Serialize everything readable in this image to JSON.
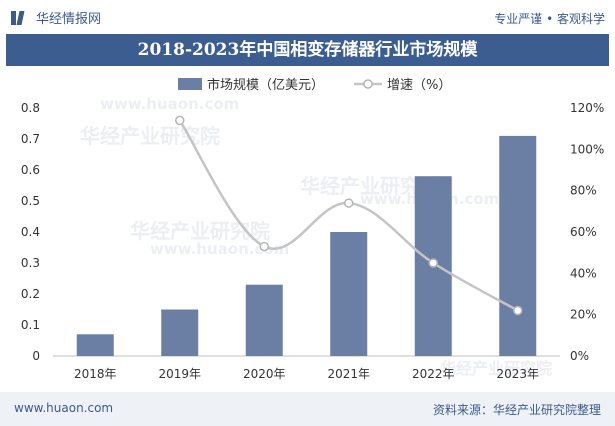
{
  "header": {
    "brand_name": "华经情报网",
    "tagline": "专业严谨 • 客观科学"
  },
  "watermark": {
    "text_cn": "华经产业研究院",
    "text_url": "www.huaon.com"
  },
  "colors": {
    "bar": "#6b7fa5",
    "line": "#c4c4c4",
    "title_bg": "#3b5d8f",
    "brand": "#3c5a8c"
  },
  "chart_data": {
    "type": "bar",
    "title": "2018-2023年中国相变存储器行业市场规模",
    "categories": [
      "2018年",
      "2019年",
      "2020年",
      "2021年",
      "2022年",
      "2023年"
    ],
    "series": [
      {
        "name": "市场规模（亿美元）",
        "type": "bar",
        "axis": "left",
        "values": [
          0.07,
          0.15,
          0.23,
          0.4,
          0.58,
          0.71
        ]
      },
      {
        "name": "增速（%）",
        "type": "line",
        "axis": "right",
        "values": [
          null,
          114,
          53,
          74,
          45,
          22
        ]
      }
    ],
    "y_left": {
      "ylim": [
        0,
        0.8
      ],
      "ticks": [
        "0",
        "0.1",
        "0.2",
        "0.3",
        "0.4",
        "0.5",
        "0.6",
        "0.7",
        "0.8"
      ]
    },
    "y_right": {
      "ylim": [
        0,
        120
      ],
      "ticks": [
        "0%",
        "20%",
        "40%",
        "60%",
        "80%",
        "100%",
        "120%"
      ]
    },
    "legend_position": "top-center",
    "grid": false
  },
  "footer": {
    "url": "www.huaon.com",
    "source": "资料来源：华经产业研究院整理"
  }
}
